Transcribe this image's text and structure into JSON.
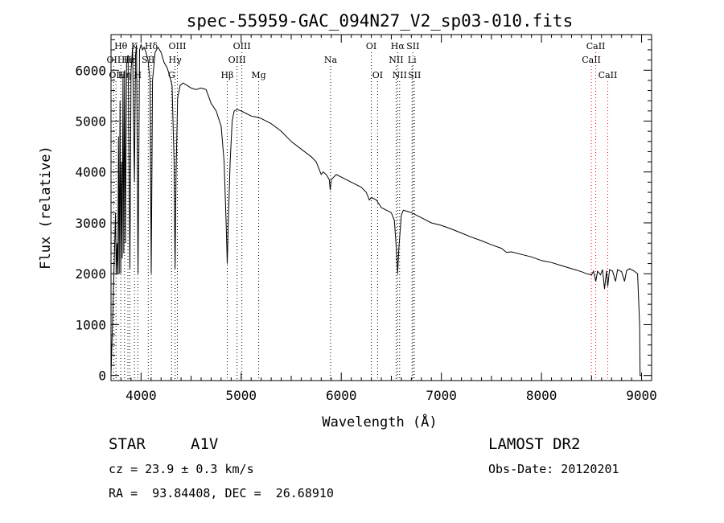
{
  "chart_data": {
    "type": "line",
    "title": "spec-55959-GAC_094N27_V2_sp03-010.fits",
    "xlabel": "Wavelength (Å)",
    "ylabel": "Flux (relative)",
    "xlim": [
      3700,
      9100
    ],
    "ylim": [
      -100,
      6700
    ],
    "x_ticks": [
      4000,
      5000,
      6000,
      7000,
      8000,
      9000
    ],
    "y_ticks": [
      0,
      1000,
      2000,
      3000,
      4000,
      5000,
      6000
    ],
    "grid": false,
    "series": [
      {
        "name": "flux",
        "points": [
          [
            3700,
            0
          ],
          [
            3730,
            2050
          ],
          [
            3745,
            3200
          ],
          [
            3752,
            2000
          ],
          [
            3760,
            2600
          ],
          [
            3768,
            2000
          ],
          [
            3775,
            4700
          ],
          [
            3782,
            2000
          ],
          [
            3790,
            5400
          ],
          [
            3797,
            2000
          ],
          [
            3805,
            4200
          ],
          [
            3812,
            2300
          ],
          [
            3820,
            5900
          ],
          [
            3828,
            2400
          ],
          [
            3836,
            6000
          ],
          [
            3845,
            2600
          ],
          [
            3855,
            6100
          ],
          [
            3870,
            6300
          ],
          [
            3889,
            2100
          ],
          [
            3900,
            6000
          ],
          [
            3915,
            6450
          ],
          [
            3934,
            3800
          ],
          [
            3945,
            6300
          ],
          [
            3955,
            6500
          ],
          [
            3970,
            2000
          ],
          [
            3985,
            6400
          ],
          [
            4000,
            6500
          ],
          [
            4015,
            6400
          ],
          [
            4030,
            6450
          ],
          [
            4050,
            6350
          ],
          [
            4070,
            6200
          ],
          [
            4090,
            5800
          ],
          [
            4102,
            2000
          ],
          [
            4115,
            5800
          ],
          [
            4140,
            6350
          ],
          [
            4170,
            6450
          ],
          [
            4200,
            6350
          ],
          [
            4230,
            6150
          ],
          [
            4260,
            6050
          ],
          [
            4285,
            5900
          ],
          [
            4310,
            5700
          ],
          [
            4330,
            4200
          ],
          [
            4340,
            2100
          ],
          [
            4350,
            4000
          ],
          [
            4365,
            5450
          ],
          [
            4390,
            5700
          ],
          [
            4420,
            5750
          ],
          [
            4460,
            5700
          ],
          [
            4500,
            5650
          ],
          [
            4550,
            5620
          ],
          [
            4600,
            5650
          ],
          [
            4650,
            5620
          ],
          [
            4700,
            5350
          ],
          [
            4750,
            5200
          ],
          [
            4800,
            4900
          ],
          [
            4830,
            4200
          ],
          [
            4850,
            3000
          ],
          [
            4861,
            2200
          ],
          [
            4872,
            3000
          ],
          [
            4890,
            4200
          ],
          [
            4910,
            5000
          ],
          [
            4930,
            5200
          ],
          [
            4960,
            5230
          ],
          [
            5000,
            5200
          ],
          [
            5050,
            5150
          ],
          [
            5100,
            5100
          ],
          [
            5150,
            5080
          ],
          [
            5200,
            5050
          ],
          [
            5300,
            4950
          ],
          [
            5400,
            4800
          ],
          [
            5500,
            4600
          ],
          [
            5600,
            4450
          ],
          [
            5700,
            4300
          ],
          [
            5750,
            4200
          ],
          [
            5780,
            4050
          ],
          [
            5800,
            3950
          ],
          [
            5820,
            4000
          ],
          [
            5850,
            3950
          ],
          [
            5880,
            3850
          ],
          [
            5890,
            3650
          ],
          [
            5900,
            3850
          ],
          [
            5950,
            3950
          ],
          [
            6000,
            3900
          ],
          [
            6100,
            3800
          ],
          [
            6200,
            3700
          ],
          [
            6250,
            3600
          ],
          [
            6280,
            3450
          ],
          [
            6300,
            3500
          ],
          [
            6350,
            3450
          ],
          [
            6400,
            3300
          ],
          [
            6450,
            3250
          ],
          [
            6500,
            3200
          ],
          [
            6530,
            3050
          ],
          [
            6550,
            2500
          ],
          [
            6563,
            2000
          ],
          [
            6575,
            2500
          ],
          [
            6600,
            3150
          ],
          [
            6620,
            3250
          ],
          [
            6700,
            3200
          ],
          [
            6800,
            3100
          ],
          [
            6900,
            3000
          ],
          [
            7000,
            2950
          ],
          [
            7100,
            2880
          ],
          [
            7200,
            2800
          ],
          [
            7300,
            2720
          ],
          [
            7400,
            2650
          ],
          [
            7500,
            2570
          ],
          [
            7600,
            2500
          ],
          [
            7650,
            2420
          ],
          [
            7700,
            2430
          ],
          [
            7800,
            2380
          ],
          [
            7900,
            2330
          ],
          [
            8000,
            2260
          ],
          [
            8100,
            2220
          ],
          [
            8200,
            2160
          ],
          [
            8300,
            2100
          ],
          [
            8400,
            2040
          ],
          [
            8450,
            2000
          ],
          [
            8500,
            1980
          ],
          [
            8520,
            2050
          ],
          [
            8542,
            1850
          ],
          [
            8560,
            2050
          ],
          [
            8590,
            1980
          ],
          [
            8610,
            2080
          ],
          [
            8630,
            1700
          ],
          [
            8650,
            2060
          ],
          [
            8662,
            1750
          ],
          [
            8680,
            2080
          ],
          [
            8710,
            2050
          ],
          [
            8740,
            1850
          ],
          [
            8760,
            2080
          ],
          [
            8800,
            2040
          ],
          [
            8830,
            1850
          ],
          [
            8850,
            2060
          ],
          [
            8880,
            2100
          ],
          [
            8920,
            2060
          ],
          [
            8960,
            2000
          ],
          [
            8980,
            1000
          ],
          [
            8985,
            0
          ],
          [
            9000,
            0
          ]
        ]
      }
    ],
    "line_markers": [
      {
        "wavelength": 3727,
        "label": "OII",
        "row": 2,
        "color": "#000000"
      },
      {
        "wavelength": 3750,
        "label": "OII",
        "row": 3,
        "color": "#000000"
      },
      {
        "wavelength": 3798,
        "label": "Hθ",
        "row": 1,
        "color": "#000000"
      },
      {
        "wavelength": 3835,
        "label": "Hη",
        "row": 3,
        "color": "#000000"
      },
      {
        "wavelength": 3869,
        "label": "He",
        "row": 2,
        "color": "#000000"
      },
      {
        "wavelength": 3889,
        "label": "Hε",
        "row": 2,
        "color": "#000000"
      },
      {
        "wavelength": 3934,
        "label": "K",
        "row": 1,
        "color": "#000000"
      },
      {
        "wavelength": 3968,
        "label": "H",
        "row": 3,
        "color": "#000000"
      },
      {
        "wavelength": 4072,
        "label": "SII",
        "row": 2,
        "color": "#000000"
      },
      {
        "wavelength": 4102,
        "label": "Hδ",
        "row": 1,
        "color": "#000000"
      },
      {
        "wavelength": 4305,
        "label": "G",
        "row": 3,
        "color": "#000000"
      },
      {
        "wavelength": 4340,
        "label": "Hγ",
        "row": 2,
        "color": "#000000"
      },
      {
        "wavelength": 4363,
        "label": "OIII",
        "row": 1,
        "color": "#000000"
      },
      {
        "wavelength": 4861,
        "label": "Hβ",
        "row": 3,
        "color": "#000000"
      },
      {
        "wavelength": 4959,
        "label": "OIII",
        "row": 2,
        "color": "#000000"
      },
      {
        "wavelength": 5007,
        "label": "OIII",
        "row": 1,
        "color": "#000000"
      },
      {
        "wavelength": 5175,
        "label": "Mg",
        "row": 3,
        "color": "#000000"
      },
      {
        "wavelength": 5893,
        "label": "Na",
        "row": 2,
        "color": "#000000"
      },
      {
        "wavelength": 6300,
        "label": "OI",
        "row": 1,
        "color": "#000000"
      },
      {
        "wavelength": 6363,
        "label": "OI",
        "row": 3,
        "color": "#000000"
      },
      {
        "wavelength": 6548,
        "label": "NII",
        "row": 2,
        "color": "#000000"
      },
      {
        "wavelength": 6563,
        "label": "Hα",
        "row": 1,
        "color": "#000000"
      },
      {
        "wavelength": 6583,
        "label": "NII",
        "row": 3,
        "color": "#000000"
      },
      {
        "wavelength": 6707,
        "label": "Li",
        "row": 2,
        "color": "#000000"
      },
      {
        "wavelength": 6716,
        "label": "SII",
        "row": 1,
        "color": "#000000"
      },
      {
        "wavelength": 6731,
        "label": "SII",
        "row": 3,
        "color": "#000000"
      },
      {
        "wavelength": 8498,
        "label": "CaII",
        "row": 2,
        "color": "#ff0000"
      },
      {
        "wavelength": 8542,
        "label": "CaII",
        "row": 1,
        "color": "#ff0000"
      },
      {
        "wavelength": 8662,
        "label": "CaII",
        "row": 3,
        "color": "#ff0000"
      }
    ]
  },
  "info": {
    "class_label": "STAR",
    "subclass": "A1V",
    "survey": "LAMOST DR2",
    "cz": "cz = 23.9 ± 0.3 km/s",
    "obs_date": "Obs-Date: 20120201",
    "coords": "RA =  93.84408, DEC =  26.68910"
  },
  "colors": {
    "line": "#000000",
    "marker_dark": "#000000",
    "marker_red": "#ff0000"
  }
}
